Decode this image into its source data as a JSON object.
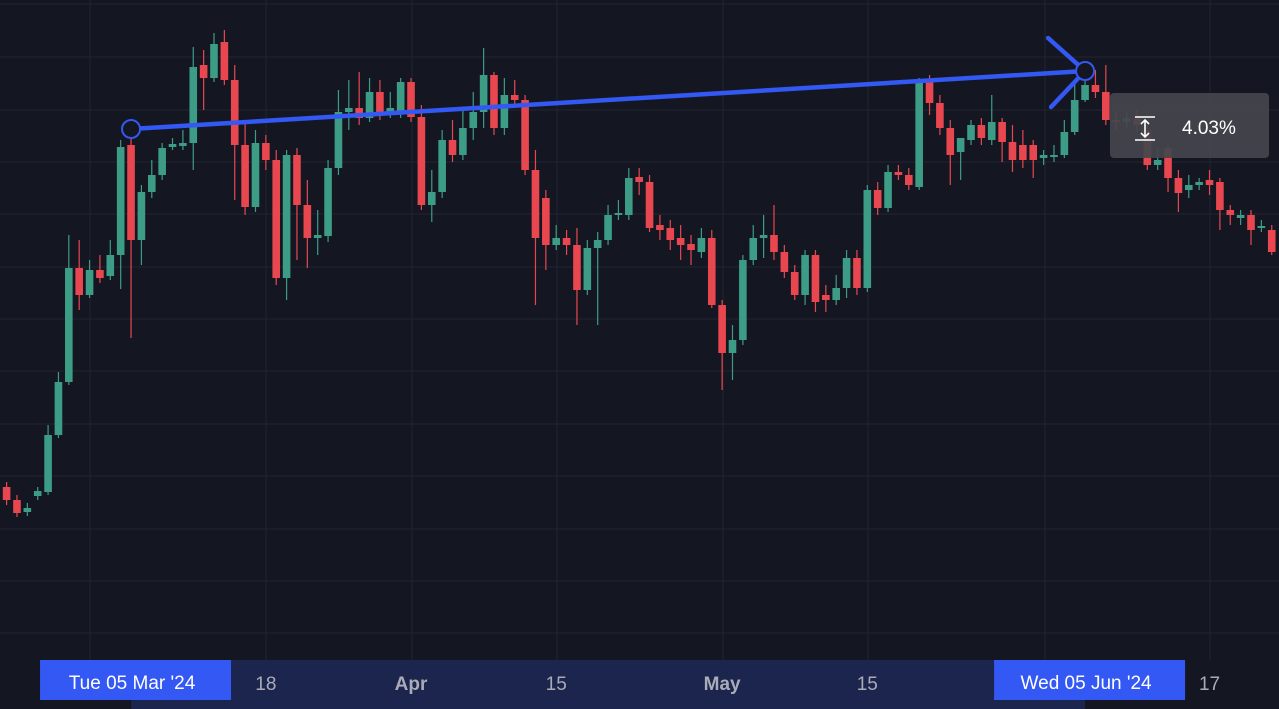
{
  "chart_data": {
    "type": "candlestick",
    "categories": [
      null,
      null,
      null,
      null,
      null,
      null,
      null,
      null,
      null,
      null,
      null,
      null,
      "Tue 05 Mar '24",
      null,
      null,
      null,
      null,
      null,
      null,
      null,
      null,
      null,
      null,
      null,
      null,
      "18",
      null,
      null,
      null,
      null,
      null,
      null,
      null,
      null,
      null,
      null,
      null,
      null,
      null,
      "Apr",
      null,
      null,
      null,
      null,
      null,
      null,
      null,
      null,
      null,
      null,
      null,
      null,
      null,
      "15",
      null,
      null,
      null,
      null,
      null,
      null,
      null,
      null,
      null,
      null,
      null,
      null,
      null,
      null,
      null,
      "May",
      null,
      null,
      null,
      null,
      null,
      null,
      null,
      null,
      null,
      null,
      null,
      null,
      null,
      "15",
      null,
      null,
      null,
      null,
      null,
      null,
      null,
      null,
      null,
      null,
      null,
      null,
      null,
      null,
      null,
      null,
      null,
      null,
      null,
      null,
      "Wed 05 Jun '24",
      null,
      null,
      null,
      null,
      null,
      null,
      null,
      null,
      null,
      null,
      null,
      "17",
      null,
      null,
      null,
      null,
      null,
      null
    ],
    "open": [
      108.1,
      106.8,
      105.6,
      107.2,
      107.6,
      113.3,
      118.6,
      130.0,
      127.3,
      129.8,
      129.2,
      131.3,
      142.3,
      132.8,
      137.6,
      139.3,
      142.1,
      142.2,
      142.5,
      150.3,
      149.0,
      152.6,
      148.8,
      142.3,
      136.1,
      142.5,
      140.8,
      129.0,
      141.3,
      136.3,
      133.0,
      133.2,
      140.0,
      145.6,
      146.0,
      145.0,
      147.6,
      145.6,
      145.6,
      148.6,
      145.1,
      136.3,
      137.6,
      142.8,
      141.3,
      144.0,
      145.6,
      149.3,
      144.0,
      147.3,
      146.8,
      139.8,
      137.0,
      132.3,
      133.0,
      132.3,
      127.8,
      132.0,
      132.8,
      135.3,
      135.3,
      139.1,
      138.6,
      134.3,
      134.0,
      133.0,
      132.4,
      131.6,
      133.0,
      126.3,
      121.5,
      122.8,
      130.8,
      133.0,
      133.3,
      131.6,
      129.6,
      127.3,
      131.3,
      127.3,
      126.8,
      128.0,
      131.0,
      128.0,
      137.8,
      136.0,
      139.6,
      139.3,
      138.1,
      148.6,
      146.5,
      144.0,
      141.6,
      142.8,
      144.3,
      142.8,
      144.6,
      142.6,
      142.3,
      142.3,
      141.0,
      141.1,
      141.3,
      143.6,
      146.8,
      148.3,
      147.6,
      144.8,
      144.6,
      145.0,
      143.8,
      140.3,
      142.0,
      139.0,
      137.8,
      138.3,
      138.8,
      138.6,
      135.8,
      135.0,
      135.3,
      134.0,
      133.8
    ],
    "high": [
      108.6,
      107.3,
      106.5,
      108.1,
      114.3,
      119.6,
      133.3,
      132.8,
      130.8,
      131.3,
      132.8,
      142.8,
      143.9,
      138.3,
      140.8,
      142.5,
      143.0,
      143.8,
      152.1,
      151.8,
      153.5,
      153.8,
      150.3,
      144.8,
      143.8,
      143.3,
      141.8,
      141.8,
      142.0,
      138.8,
      135.8,
      140.8,
      147.8,
      148.8,
      149.6,
      149.0,
      148.8,
      147.6,
      149.0,
      149.0,
      146.3,
      139.8,
      143.8,
      144.8,
      145.8,
      147.6,
      152.0,
      149.6,
      149.0,
      148.8,
      147.3,
      141.8,
      137.8,
      134.3,
      133.8,
      134.0,
      132.8,
      133.6,
      136.3,
      136.8,
      140.0,
      140.0,
      139.3,
      135.3,
      134.8,
      134.3,
      133.3,
      134.0,
      133.8,
      126.8,
      124.3,
      131.3,
      134.3,
      135.3,
      136.3,
      132.3,
      130.3,
      131.8,
      131.8,
      128.3,
      129.3,
      131.8,
      131.8,
      138.3,
      138.6,
      140.3,
      140.3,
      140.0,
      149.0,
      149.3,
      147.3,
      144.8,
      143.0,
      144.8,
      145.0,
      147.3,
      145.0,
      144.3,
      143.8,
      142.8,
      141.8,
      142.3,
      144.8,
      148.8,
      149.7,
      149.8,
      150.3,
      145.6,
      145.6,
      145.8,
      144.3,
      141.8,
      142.3,
      139.8,
      139.3,
      139.0,
      139.8,
      139.0,
      136.3,
      135.8,
      135.8,
      134.8,
      134.3
    ],
    "low": [
      106.3,
      105.1,
      105.2,
      106.8,
      107.3,
      113.0,
      118.3,
      125.8,
      127.0,
      128.5,
      128.8,
      127.9,
      123.0,
      130.3,
      137.0,
      138.8,
      141.8,
      141.8,
      139.8,
      145.8,
      148.6,
      148.3,
      136.8,
      135.3,
      135.6,
      139.8,
      128.3,
      126.8,
      130.8,
      130.0,
      131.3,
      132.6,
      139.3,
      143.8,
      144.3,
      144.6,
      144.8,
      145.0,
      145.0,
      144.6,
      135.8,
      134.6,
      137.0,
      140.6,
      140.8,
      142.8,
      144.0,
      143.3,
      143.3,
      146.0,
      139.3,
      126.3,
      129.8,
      131.8,
      131.3,
      124.3,
      127.3,
      124.3,
      132.3,
      134.8,
      134.8,
      137.3,
      133.6,
      132.8,
      131.8,
      130.8,
      130.3,
      131.0,
      126.0,
      117.8,
      118.8,
      122.3,
      130.3,
      131.0,
      130.8,
      129.0,
      126.8,
      126.3,
      125.6,
      125.6,
      126.3,
      127.0,
      127.3,
      127.6,
      135.3,
      135.6,
      138.8,
      137.8,
      137.8,
      145.3,
      143.3,
      138.3,
      138.8,
      142.3,
      142.3,
      142.3,
      140.6,
      139.6,
      140.0,
      139.0,
      140.3,
      140.6,
      141.0,
      143.3,
      146.6,
      147.0,
      144.3,
      143.8,
      144.0,
      143.6,
      139.8,
      139.8,
      137.6,
      135.6,
      137.0,
      137.8,
      137.3,
      133.8,
      134.3,
      134.3,
      132.3,
      133.6,
      131.3
    ],
    "close": [
      106.8,
      105.5,
      106.0,
      107.7,
      113.3,
      118.6,
      130.0,
      127.3,
      129.8,
      129.0,
      131.3,
      142.1,
      132.8,
      137.6,
      139.3,
      142.0,
      142.4,
      142.5,
      150.1,
      149.0,
      152.4,
      148.8,
      142.3,
      136.1,
      142.5,
      140.8,
      129.0,
      141.3,
      136.3,
      133.0,
      133.3,
      140.0,
      145.6,
      146.0,
      145.0,
      147.6,
      145.6,
      146.0,
      148.6,
      145.1,
      136.3,
      137.6,
      142.8,
      141.3,
      144.0,
      145.6,
      149.3,
      144.0,
      147.3,
      146.8,
      139.8,
      133.0,
      132.3,
      133.0,
      132.3,
      127.8,
      132.0,
      132.8,
      135.3,
      135.5,
      139.0,
      138.6,
      134.0,
      133.8,
      132.8,
      132.3,
      131.8,
      133.0,
      126.3,
      121.5,
      122.8,
      130.8,
      133.0,
      133.3,
      131.6,
      129.6,
      127.3,
      131.3,
      126.6,
      126.8,
      128.0,
      131.0,
      128.0,
      137.8,
      136.0,
      139.6,
      139.3,
      138.3,
      148.6,
      146.5,
      144.0,
      141.3,
      143.0,
      144.3,
      143.0,
      144.6,
      142.6,
      140.8,
      140.8,
      140.8,
      141.3,
      141.3,
      143.6,
      146.8,
      148.3,
      147.6,
      144.8,
      144.6,
      145.0,
      144.3,
      140.3,
      140.8,
      139.0,
      137.5,
      138.3,
      138.6,
      138.3,
      135.8,
      135.3,
      135.3,
      133.8,
      134.2,
      131.6
    ],
    "up_color": "#3d9c86",
    "down_color": "#e84750",
    "ylim": [
      90.8,
      156.8
    ],
    "measure": {
      "start": 143.9,
      "end": 149.7,
      "label": "4.03%",
      "color": "#3358f4"
    }
  }
}
